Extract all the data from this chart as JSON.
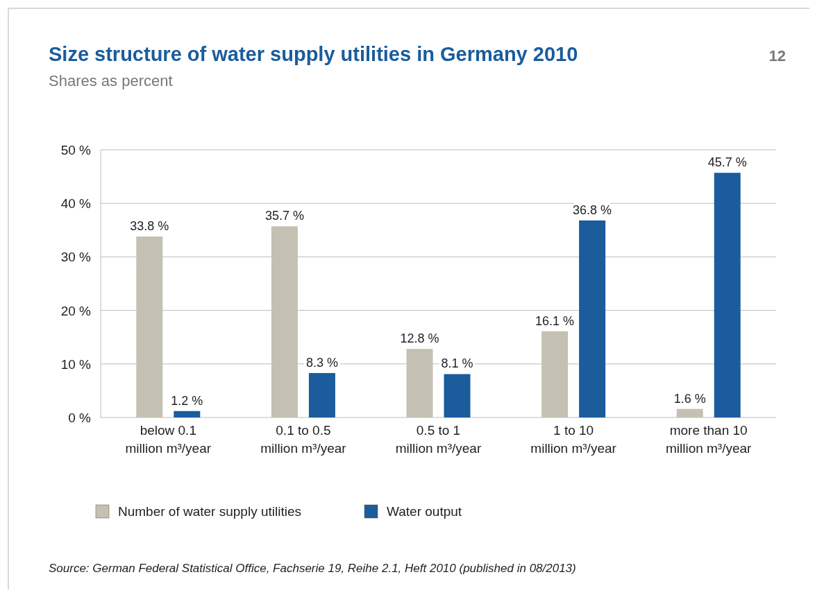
{
  "chart_data": {
    "type": "bar",
    "title": "Size structure of water supply utilities in Germany 2010",
    "subtitle": "Shares as percent",
    "categories": [
      "below 0.1\nmillion m³/year",
      "0.1 to 0.5\nmillion m³/year",
      "0.5 to 1\nmillion m³/year",
      "1 to 10\nmillion m³/year",
      "more than 10\nmillion m³/year"
    ],
    "series": [
      {
        "name": "Number of water supply utilities",
        "color": "#c4c1b3",
        "values": [
          33.8,
          35.7,
          12.8,
          16.1,
          1.6
        ],
        "value_labels": [
          "33.8 %",
          "35.7 %",
          "12.8 %",
          "16.1 %",
          "1.6 %"
        ]
      },
      {
        "name": "Water output",
        "color": "#1a5c9c",
        "values": [
          1.2,
          8.3,
          8.1,
          36.8,
          45.7
        ],
        "value_labels": [
          "1.2 %",
          "8.3 %",
          "8.1 %",
          "36.8 %",
          "45.7 %"
        ]
      }
    ],
    "ylim": [
      0,
      50
    ],
    "yticks": [
      {
        "value": 0,
        "label": "0 %"
      },
      {
        "value": 10,
        "label": "10 %"
      },
      {
        "value": 20,
        "label": "20 %"
      },
      {
        "value": 30,
        "label": "30 %"
      },
      {
        "value": 40,
        "label": "40 %"
      },
      {
        "value": 50,
        "label": "50 %"
      }
    ],
    "grid": "y",
    "legend": "bottom",
    "annotations": [
      "12",
      "Source: German Federal Statistical Office, Fachserie 19, Reihe 2.1, Heft 2010 (published in 08/2013)"
    ]
  }
}
